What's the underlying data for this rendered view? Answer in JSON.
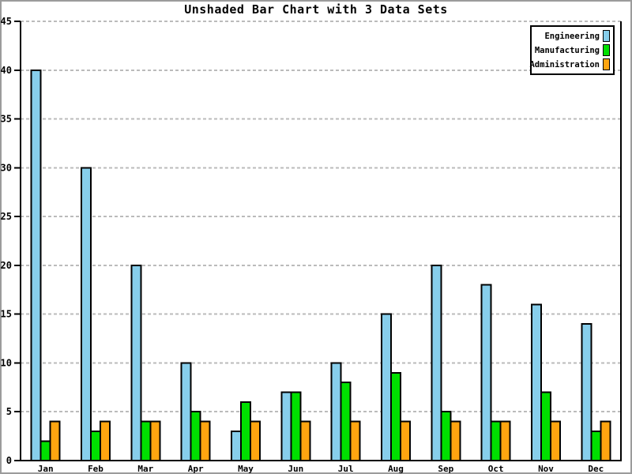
{
  "window": {
    "background": "#ffffff",
    "frame_border_color": "#9b9b9b"
  },
  "chart_data": {
    "type": "bar",
    "title": "Unshaded Bar Chart with 3 Data Sets",
    "categories": [
      "Jan",
      "Feb",
      "Mar",
      "Apr",
      "May",
      "Jun",
      "Jul",
      "Aug",
      "Sep",
      "Oct",
      "Nov",
      "Dec"
    ],
    "series": [
      {
        "name": "Engineering",
        "color": "#87CEEB",
        "values": [
          40,
          30,
          20,
          10,
          3,
          7,
          10,
          15,
          20,
          18,
          16,
          14
        ]
      },
      {
        "name": "Manufacturing",
        "color": "#00E000",
        "values": [
          2,
          3,
          4,
          5,
          6,
          7,
          8,
          9,
          5,
          4,
          7,
          3
        ]
      },
      {
        "name": "Administration",
        "color": "#FFA510",
        "values": [
          4,
          4,
          4,
          4,
          4,
          4,
          4,
          4,
          4,
          4,
          4,
          4
        ]
      }
    ],
    "xlabel": "",
    "ylabel": "",
    "ylim": [
      0,
      45
    ],
    "ytick_step": 5,
    "ytick_labels": [
      "0",
      "5",
      "10",
      "15",
      "20",
      "25",
      "30",
      "35",
      "40",
      "45"
    ],
    "grid": "horizontal-dashed",
    "grid_color": "#bbbbbb",
    "axis_color": "#000000",
    "bar_border_color": "#000000",
    "legend_position": "top-right",
    "legend_border_color": "#000000",
    "legend_background": "#ffffff"
  }
}
